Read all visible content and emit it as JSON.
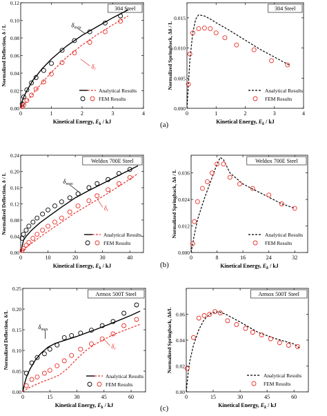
{
  "row_captions": [
    "(a)",
    "(b)",
    "(c)"
  ],
  "legend": {
    "analytical": "Analytical Results",
    "fem": "FEM Results"
  },
  "colors": {
    "analytical_max": "#000000",
    "analytical_r": "#e8302a",
    "fem_max": "#000000",
    "fem_r": "#e8302a",
    "springback_line": "#000000"
  },
  "chart_data": [
    {
      "type": "line",
      "panel": "a-left",
      "material": "304 Steel",
      "xlabel": "Kinetical Energy, E_k / kJ",
      "ylabel": "Normalized Deflection, δ / L",
      "xlim": [
        0,
        4
      ],
      "ylim": [
        0,
        0.12
      ],
      "xticks": [
        0,
        1,
        2,
        3,
        4
      ],
      "yticks": [
        0.0,
        0.02,
        0.04,
        0.06,
        0.08,
        0.1,
        0.12
      ],
      "annotations": [
        "δmax",
        "δr"
      ],
      "series": [
        {
          "name": "Analytical Results",
          "label": "δmax",
          "style": "solid",
          "color": "#000000",
          "x": [
            0,
            0.05,
            0.1,
            0.2,
            0.4,
            0.7,
            1.0,
            1.5,
            2.0,
            2.5,
            3.0,
            3.5
          ],
          "y": [
            0,
            0.008,
            0.013,
            0.02,
            0.032,
            0.045,
            0.056,
            0.071,
            0.083,
            0.093,
            0.103,
            0.112
          ]
        },
        {
          "name": "Analytical Results",
          "label": "δr",
          "style": "dashed",
          "color": "#e8302a",
          "x": [
            0,
            0.05,
            0.1,
            0.2,
            0.4,
            0.7,
            1.0,
            1.5,
            2.0,
            2.5,
            3.0,
            3.5
          ],
          "y": [
            0,
            0.002,
            0.004,
            0.008,
            0.017,
            0.029,
            0.041,
            0.058,
            0.072,
            0.084,
            0.095,
            0.105
          ]
        },
        {
          "name": "FEM Results",
          "marker": "circle",
          "color": "#000000",
          "x": [
            0.05,
            0.1,
            0.2,
            0.35,
            0.5,
            0.75,
            1.0,
            1.35,
            1.75,
            2.25,
            2.75,
            3.25
          ],
          "y": [
            0.005,
            0.013,
            0.021,
            0.029,
            0.035,
            0.043,
            0.051,
            0.066,
            0.077,
            0.087,
            0.097,
            0.105
          ]
        },
        {
          "name": "FEM Results",
          "marker": "circle",
          "color": "#e8302a",
          "x": [
            0.05,
            0.1,
            0.2,
            0.35,
            0.5,
            0.75,
            1.0,
            1.35,
            1.75,
            2.25,
            2.75,
            3.25
          ],
          "y": [
            0.002,
            0.004,
            0.009,
            0.015,
            0.022,
            0.03,
            0.039,
            0.052,
            0.063,
            0.075,
            0.087,
            0.099
          ]
        }
      ]
    },
    {
      "type": "line",
      "panel": "a-right",
      "material": "304 Steel",
      "xlabel": "Kinetical Energy, E_k / kJ",
      "ylabel": "Normalized Springback, Δδ / L",
      "xlim": [
        0,
        4
      ],
      "ylim": [
        0,
        0.0175
      ],
      "xticks": [
        0,
        1,
        2,
        3,
        4
      ],
      "yticks": [
        0.0,
        0.005,
        0.01,
        0.015
      ],
      "series": [
        {
          "name": "Analytical Results",
          "style": "dashed",
          "color": "#000000",
          "x": [
            0,
            0.05,
            0.1,
            0.2,
            0.3,
            0.4,
            0.6,
            0.8,
            1.0,
            1.5,
            2.0,
            2.5,
            3.0,
            3.5
          ],
          "y": [
            0,
            0.004,
            0.008,
            0.0125,
            0.0148,
            0.0155,
            0.0153,
            0.0148,
            0.0142,
            0.0128,
            0.0113,
            0.0098,
            0.0085,
            0.0072
          ]
        },
        {
          "name": "FEM Results",
          "marker": "circle",
          "color": "#e8302a",
          "x": [
            0.05,
            0.1,
            0.2,
            0.4,
            0.6,
            0.8,
            1.0,
            1.3,
            1.7,
            2.3,
            2.9,
            3.45
          ],
          "y": [
            0.004,
            0.009,
            0.0125,
            0.0132,
            0.0133,
            0.0132,
            0.0125,
            0.0117,
            0.0105,
            0.0097,
            0.0079,
            0.0072
          ]
        }
      ]
    },
    {
      "type": "line",
      "panel": "b-left",
      "material": "Weldox 700E Steel",
      "xlabel": "Kinetical Energy, E_k / kJ",
      "ylabel": "Normalized Deflection, δ / L",
      "xlim": [
        0,
        45
      ],
      "ylim": [
        0,
        0.24
      ],
      "xticks": [
        0,
        10,
        20,
        30,
        40
      ],
      "yticks": [
        0.0,
        0.04,
        0.08,
        0.12,
        0.16,
        0.2,
        0.24
      ],
      "annotations": [
        "δmax",
        "δr"
      ],
      "series": [
        {
          "name": "Analytical Results",
          "label": "δmax",
          "style": "solid",
          "color": "#000000",
          "x": [
            0,
            1,
            2,
            4,
            7,
            10,
            15,
            20,
            25,
            30,
            35,
            40,
            43
          ],
          "y": [
            0,
            0.03,
            0.04,
            0.055,
            0.073,
            0.088,
            0.112,
            0.135,
            0.153,
            0.17,
            0.187,
            0.204,
            0.214
          ]
        },
        {
          "name": "Analytical Results",
          "label": "δr",
          "style": "dashed",
          "color": "#e8302a",
          "x": [
            0,
            1,
            2,
            4,
            7,
            10,
            15,
            20,
            25,
            30,
            35,
            40,
            43
          ],
          "y": [
            0,
            0.006,
            0.012,
            0.023,
            0.038,
            0.052,
            0.075,
            0.098,
            0.118,
            0.138,
            0.159,
            0.181,
            0.195
          ]
        },
        {
          "name": "FEM Results",
          "marker": "circle",
          "color": "#000000",
          "x": [
            0.5,
            1,
            2,
            3,
            4.5,
            6,
            8,
            10,
            12.5,
            15,
            18,
            21,
            25,
            28,
            32,
            36,
            40
          ],
          "y": [
            0.035,
            0.045,
            0.055,
            0.065,
            0.075,
            0.085,
            0.095,
            0.105,
            0.115,
            0.125,
            0.135,
            0.145,
            0.16,
            0.17,
            0.18,
            0.195,
            0.205
          ]
        },
        {
          "name": "FEM Results",
          "marker": "circle",
          "color": "#e8302a",
          "x": [
            0.5,
            1,
            2,
            3,
            4.5,
            6,
            8,
            10,
            12.5,
            15,
            18,
            21,
            25,
            28,
            32,
            36,
            40
          ],
          "y": [
            0.005,
            0.01,
            0.018,
            0.025,
            0.035,
            0.045,
            0.055,
            0.065,
            0.075,
            0.085,
            0.1,
            0.115,
            0.128,
            0.14,
            0.155,
            0.17,
            0.185
          ]
        }
      ]
    },
    {
      "type": "line",
      "panel": "b-right",
      "material": "Weldox 700E Steel",
      "xlabel": "Kinetical Energy, E_k / kJ",
      "ylabel": "Normalized Springback, Δδ / L",
      "xlim": [
        0,
        36
      ],
      "ylim": [
        0,
        0.044
      ],
      "xticks": [
        0,
        8,
        16,
        24,
        32
      ],
      "yticks": [
        0.0,
        0.012,
        0.024,
        0.036
      ],
      "series": [
        {
          "name": "Analytical Results",
          "style": "dashed",
          "color": "#000000",
          "x": [
            0,
            1,
            2,
            4,
            6,
            8,
            9,
            10,
            12,
            16,
            20,
            24,
            28,
            32
          ],
          "y": [
            0,
            0.008,
            0.015,
            0.024,
            0.032,
            0.04,
            0.043,
            0.042,
            0.036,
            0.031,
            0.028,
            0.025,
            0.022,
            0.02
          ]
        },
        {
          "name": "FEM Results",
          "marker": "circle",
          "color": "#e8302a",
          "x": [
            0.5,
            1,
            2,
            3.5,
            5,
            6.5,
            8,
            10,
            12,
            15,
            19,
            24,
            28,
            32
          ],
          "y": [
            0.004,
            0.014,
            0.023,
            0.029,
            0.032,
            0.036,
            0.04,
            0.04,
            0.034,
            0.031,
            0.029,
            0.026,
            0.022,
            0.02
          ]
        }
      ]
    },
    {
      "type": "line",
      "panel": "c-left",
      "material": "Armox 500T Steel",
      "xlabel": "Kinetical Energy, E_k / kJ",
      "ylabel": "Normalized Deflection, δ/L",
      "xlim": [
        0,
        68
      ],
      "ylim": [
        0,
        0.25
      ],
      "xticks": [
        0,
        15,
        30,
        45,
        60
      ],
      "yticks": [
        0.0,
        0.05,
        0.1,
        0.15,
        0.2,
        0.25
      ],
      "annotations": [
        "δmax",
        "δr"
      ],
      "series": [
        {
          "name": "Analytical Results",
          "label": "δmax",
          "style": "solid",
          "color": "#000000",
          "x": [
            0,
            1,
            2,
            4,
            7,
            10,
            14,
            18,
            20,
            25,
            30,
            40,
            50,
            60,
            65
          ],
          "y": [
            0,
            0.02,
            0.035,
            0.055,
            0.077,
            0.093,
            0.108,
            0.117,
            0.12,
            0.127,
            0.134,
            0.15,
            0.167,
            0.185,
            0.195
          ]
        },
        {
          "name": "Analytical Results",
          "label": "δr",
          "style": "dashed",
          "color": "#e8302a",
          "x": [
            0,
            1,
            2,
            4,
            7,
            10,
            15,
            20,
            25,
            30,
            35,
            40,
            50,
            60,
            65
          ],
          "y": [
            0,
            0.003,
            0.006,
            0.011,
            0.017,
            0.023,
            0.031,
            0.04,
            0.057,
            0.08,
            0.1,
            0.115,
            0.138,
            0.155,
            0.163
          ]
        },
        {
          "name": "FEM Results",
          "marker": "circle",
          "color": "#000000",
          "x": [
            2,
            5,
            8,
            12,
            15,
            19,
            23,
            27,
            32,
            38,
            44,
            50,
            56,
            63
          ],
          "y": [
            0.045,
            0.07,
            0.083,
            0.092,
            0.103,
            0.113,
            0.131,
            0.136,
            0.142,
            0.149,
            0.16,
            0.17,
            0.19,
            0.21
          ]
        },
        {
          "name": "FEM Results",
          "marker": "circle",
          "color": "#e8302a",
          "x": [
            2,
            5,
            8,
            12,
            15,
            19,
            23,
            27,
            32,
            38,
            44,
            50,
            56,
            63
          ],
          "y": [
            0.015,
            0.03,
            0.036,
            0.045,
            0.052,
            0.063,
            0.075,
            0.088,
            0.103,
            0.116,
            0.128,
            0.14,
            0.16,
            0.175
          ]
        }
      ]
    },
    {
      "type": "line",
      "panel": "c-right",
      "material": "Armox 500T Steel",
      "xlabel": "Kinetical Energy, E_k / kJ",
      "ylabel": "Normalized Springback, Δδ/L",
      "xlim": [
        0,
        68
      ],
      "ylim": [
        0,
        0.08
      ],
      "xticks": [
        0,
        15,
        30,
        45,
        60
      ],
      "yticks": [
        0.0,
        0.02,
        0.04,
        0.06
      ],
      "series": [
        {
          "name": "Analytical Results",
          "style": "dashed",
          "color": "#000000",
          "x": [
            0,
            1,
            2,
            4,
            7,
            10,
            14,
            18,
            22,
            30,
            40,
            50,
            60,
            63
          ],
          "y": [
            0,
            0.014,
            0.024,
            0.036,
            0.048,
            0.056,
            0.061,
            0.062,
            0.06,
            0.054,
            0.046,
            0.041,
            0.037,
            0.034
          ]
        },
        {
          "name": "FEM Results",
          "marker": "circle",
          "color": "#e8302a",
          "x": [
            0.5,
            4,
            7,
            10,
            13,
            16,
            19,
            23,
            28,
            33,
            37,
            42,
            47,
            52,
            57,
            62
          ],
          "y": [
            0.018,
            0.042,
            0.057,
            0.059,
            0.06,
            0.062,
            0.061,
            0.055,
            0.052,
            0.049,
            0.046,
            0.044,
            0.041,
            0.038,
            0.036,
            0.035
          ]
        }
      ]
    }
  ]
}
